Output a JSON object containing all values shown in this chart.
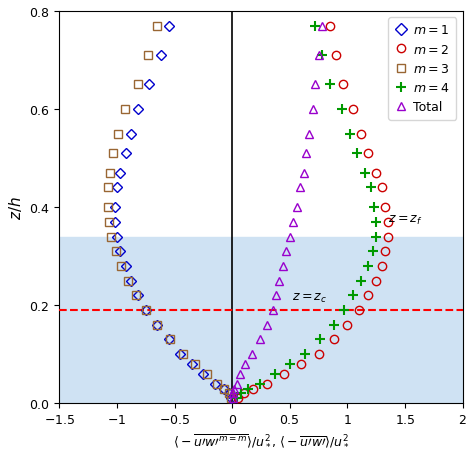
{
  "xlim": [
    -1.5,
    2.0
  ],
  "ylim": [
    0,
    0.8
  ],
  "xticks": [
    -1.5,
    -1.0,
    -0.5,
    0.0,
    0.5,
    1.0,
    1.5,
    2.0
  ],
  "yticks": [
    0.0,
    0.2,
    0.4,
    0.6,
    0.8
  ],
  "zc": 0.19,
  "zf": 0.34,
  "bg_color": "#cfe2f3",
  "m1_color": "#0000cc",
  "m2_color": "#cc0000",
  "m3_color": "#996633",
  "m4_color": "#009900",
  "total_color": "#9900cc",
  "m1_left": {
    "x": [
      -0.55,
      -0.62,
      -0.72,
      -0.82,
      -0.88,
      -0.92,
      -0.97,
      -1.0,
      -1.02,
      -1.02,
      -1.0,
      -0.97,
      -0.92,
      -0.88,
      -0.82,
      -0.75,
      -0.65,
      -0.55,
      -0.45,
      -0.35,
      -0.25,
      -0.15,
      -0.07,
      -0.03,
      -0.01
    ],
    "z": [
      0.77,
      0.71,
      0.65,
      0.6,
      0.55,
      0.51,
      0.47,
      0.44,
      0.4,
      0.37,
      0.34,
      0.31,
      0.28,
      0.25,
      0.22,
      0.19,
      0.16,
      0.13,
      0.1,
      0.08,
      0.06,
      0.04,
      0.03,
      0.02,
      0.01
    ]
  },
  "m3_left": {
    "x": [
      -0.65,
      -0.73,
      -0.82,
      -0.93,
      -0.99,
      -1.03,
      -1.06,
      -1.08,
      -1.08,
      -1.07,
      -1.05,
      -1.01,
      -0.96,
      -0.9,
      -0.83,
      -0.75,
      -0.65,
      -0.54,
      -0.43,
      -0.32,
      -0.22,
      -0.13,
      -0.07,
      -0.03,
      -0.01
    ],
    "z": [
      0.77,
      0.71,
      0.65,
      0.6,
      0.55,
      0.51,
      0.47,
      0.44,
      0.4,
      0.37,
      0.34,
      0.31,
      0.28,
      0.25,
      0.22,
      0.19,
      0.16,
      0.13,
      0.1,
      0.08,
      0.06,
      0.04,
      0.03,
      0.02,
      0.01
    ]
  },
  "m2_right": {
    "x": [
      0.85,
      0.9,
      0.96,
      1.05,
      1.12,
      1.18,
      1.25,
      1.3,
      1.33,
      1.35,
      1.35,
      1.33,
      1.3,
      1.25,
      1.18,
      1.1,
      1.0,
      0.88,
      0.75,
      0.6,
      0.45,
      0.3,
      0.18,
      0.1,
      0.05
    ],
    "z": [
      0.77,
      0.71,
      0.65,
      0.6,
      0.55,
      0.51,
      0.47,
      0.44,
      0.4,
      0.37,
      0.34,
      0.31,
      0.28,
      0.25,
      0.22,
      0.19,
      0.16,
      0.13,
      0.1,
      0.08,
      0.06,
      0.04,
      0.03,
      0.02,
      0.01
    ]
  },
  "m4_right": {
    "x": [
      0.72,
      0.78,
      0.85,
      0.95,
      1.02,
      1.08,
      1.15,
      1.2,
      1.23,
      1.25,
      1.25,
      1.22,
      1.18,
      1.12,
      1.05,
      0.97,
      0.88,
      0.76,
      0.63,
      0.5,
      0.37,
      0.24,
      0.14,
      0.08,
      0.04
    ],
    "z": [
      0.77,
      0.71,
      0.65,
      0.6,
      0.55,
      0.51,
      0.47,
      0.44,
      0.4,
      0.37,
      0.34,
      0.31,
      0.28,
      0.25,
      0.22,
      0.19,
      0.16,
      0.13,
      0.1,
      0.08,
      0.06,
      0.04,
      0.03,
      0.02,
      0.01
    ]
  },
  "total_right": {
    "x": [
      0.78,
      0.75,
      0.72,
      0.7,
      0.67,
      0.64,
      0.62,
      0.59,
      0.56,
      0.53,
      0.5,
      0.47,
      0.44,
      0.41,
      0.38,
      0.35,
      0.3,
      0.24,
      0.17,
      0.11,
      0.07,
      0.04,
      0.02,
      0.01,
      0.005
    ],
    "z": [
      0.77,
      0.71,
      0.65,
      0.6,
      0.55,
      0.51,
      0.47,
      0.44,
      0.4,
      0.37,
      0.34,
      0.31,
      0.28,
      0.25,
      0.22,
      0.19,
      0.16,
      0.13,
      0.1,
      0.08,
      0.06,
      0.04,
      0.03,
      0.02,
      0.01
    ]
  }
}
